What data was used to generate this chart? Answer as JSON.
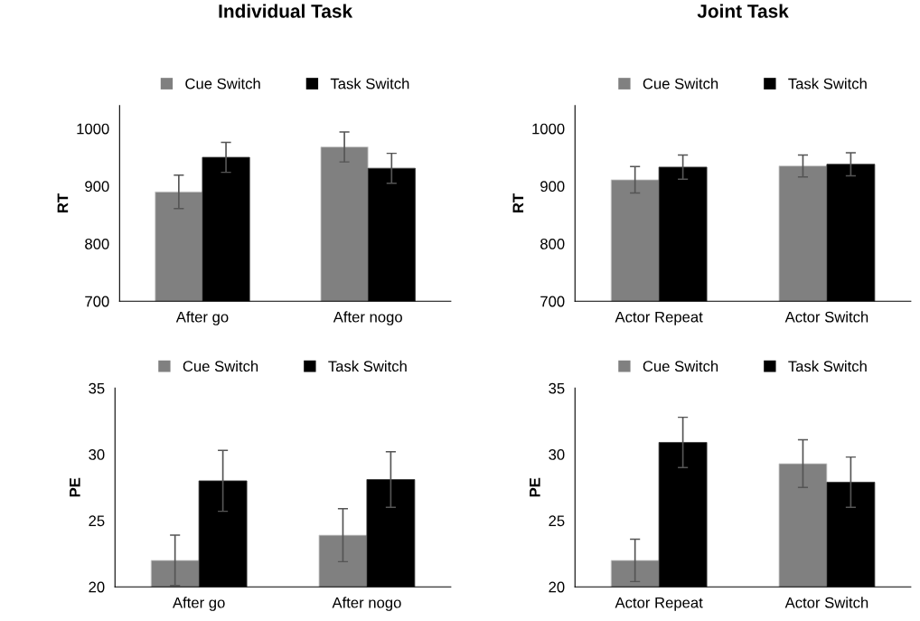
{
  "chart_data": [
    {
      "type": "bar",
      "title": "Individual Task",
      "ylabel": "RT",
      "categories": [
        "After go",
        "After nogo"
      ],
      "ylim": [
        700,
        1040
      ],
      "yticks": [
        700,
        800,
        900,
        1000
      ],
      "legend": "top",
      "grid": false,
      "series": [
        {
          "name": "Cue Switch",
          "color": "#808080",
          "values": [
            890,
            968
          ],
          "errors": [
            29,
            26
          ]
        },
        {
          "name": "Task Switch",
          "color": "#000000",
          "values": [
            950,
            931
          ],
          "errors": [
            26,
            26
          ]
        }
      ]
    },
    {
      "type": "bar",
      "title": "Joint Task",
      "ylabel": "RT",
      "categories": [
        "Actor Repeat",
        "Actor Switch"
      ],
      "ylim": [
        700,
        1040
      ],
      "yticks": [
        700,
        800,
        900,
        1000
      ],
      "legend": "top",
      "grid": false,
      "series": [
        {
          "name": "Cue Switch",
          "color": "#808080",
          "values": [
            911,
            935
          ],
          "errors": [
            23,
            19
          ]
        },
        {
          "name": "Task Switch",
          "color": "#000000",
          "values": [
            933,
            938
          ],
          "errors": [
            21,
            20
          ]
        }
      ]
    },
    {
      "type": "bar",
      "ylabel": "PE",
      "categories": [
        "After go",
        "After nogo"
      ],
      "ylim": [
        20,
        35
      ],
      "yticks": [
        20,
        25,
        30,
        35
      ],
      "legend": "top",
      "grid": false,
      "series": [
        {
          "name": "Cue Switch",
          "color": "#808080",
          "values": [
            22.0,
            23.9
          ],
          "errors": [
            1.9,
            2.0
          ]
        },
        {
          "name": "Task Switch",
          "color": "#000000",
          "values": [
            28.0,
            28.1
          ],
          "errors": [
            2.3,
            2.1
          ]
        }
      ]
    },
    {
      "type": "bar",
      "ylabel": "PE",
      "categories": [
        "Actor Repeat",
        "Actor Switch"
      ],
      "ylim": [
        20,
        35
      ],
      "yticks": [
        20,
        25,
        30,
        35
      ],
      "legend": "top",
      "grid": false,
      "series": [
        {
          "name": "Cue Switch",
          "color": "#808080",
          "values": [
            22.0,
            29.3
          ],
          "errors": [
            1.6,
            1.8
          ]
        },
        {
          "name": "Task Switch",
          "color": "#000000",
          "values": [
            30.9,
            27.9
          ],
          "errors": [
            1.9,
            1.9
          ]
        }
      ]
    }
  ]
}
